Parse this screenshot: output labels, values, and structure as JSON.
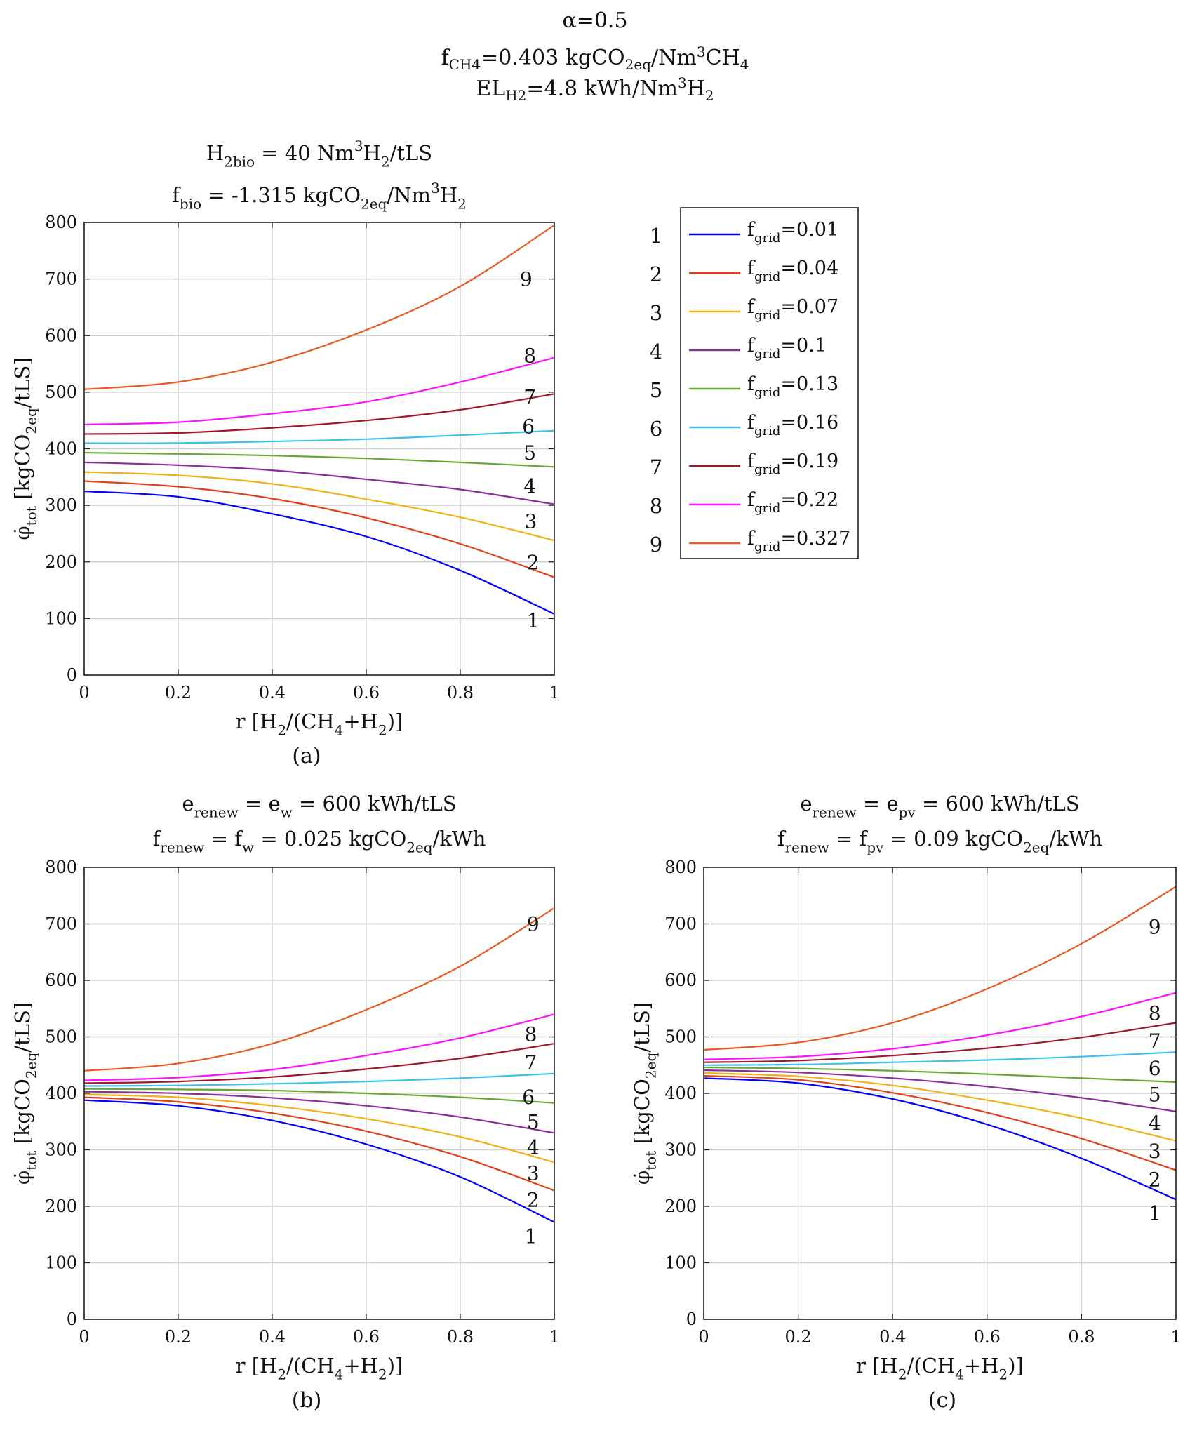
{
  "header": {
    "alpha": "α=0.5",
    "f_ch4": {
      "main": "f",
      "sub": "CH4",
      "rest": "=0.403 kgCO",
      "sub2": "2eq",
      "rest2": "/Nm",
      "sup": "3",
      "rest3": "CH",
      "sub3": "4"
    },
    "el_h2": {
      "main": "EL",
      "sub": "H2",
      "rest": "=4.8 kWh/Nm",
      "sup": "3",
      "rest2": "H",
      "sub2": "2"
    }
  },
  "legend": {
    "numbers": [
      "1",
      "2",
      "3",
      "4",
      "5",
      "6",
      "7",
      "8",
      "9"
    ],
    "prefix": "f",
    "sub": "grid",
    "values": [
      "=0.01",
      "=0.04",
      "=0.07",
      "=0.1",
      "=0.13",
      "=0.16",
      "=0.19",
      "=0.22",
      "=0.327"
    ]
  },
  "colors": {
    "series": [
      "#0000ff",
      "#e0401a",
      "#f2b019",
      "#8a2f9a",
      "#66a832",
      "#3ec0f0",
      "#a0182f",
      "#ff10ff",
      "#e85a22"
    ]
  },
  "axis_common": {
    "xticks": [
      "0",
      "0.2",
      "0.4",
      "0.6",
      "0.8",
      "1"
    ],
    "yticks": [
      "0",
      "100",
      "200",
      "300",
      "400",
      "500",
      "600",
      "700",
      "800"
    ],
    "xlabel": "r [H2/(CH4+H2)]",
    "ylabel": "φ̇tot [kgCO2eq/tLS]"
  },
  "chart_data": [
    {
      "type": "line",
      "panel": "(a)",
      "title": [
        "H2bio = 40 Nm3H2/tLS",
        "fbio = -1.315 kgCO2eq/Nm3H2"
      ],
      "xlabel": "r [H2/(CH4+H2)]",
      "ylabel": "φ̇tot [kgCO2eq/tLS]",
      "xlim": [
        0,
        1
      ],
      "ylim": [
        0,
        800
      ],
      "x": [
        0,
        0.2,
        0.4,
        0.6,
        0.8,
        1
      ],
      "series": [
        {
          "name": "1",
          "values": [
            325,
            315,
            285,
            245,
            185,
            108
          ]
        },
        {
          "name": "2",
          "values": [
            343,
            333,
            312,
            278,
            232,
            173
          ]
        },
        {
          "name": "3",
          "values": [
            359,
            353,
            338,
            311,
            279,
            238
          ]
        },
        {
          "name": "4",
          "values": [
            376,
            371,
            362,
            346,
            328,
            302
          ]
        },
        {
          "name": "5",
          "values": [
            393,
            391,
            388,
            383,
            376,
            368
          ]
        },
        {
          "name": "6",
          "values": [
            410,
            410,
            413,
            417,
            424,
            432
          ]
        },
        {
          "name": "7",
          "values": [
            426,
            428,
            437,
            450,
            469,
            497
          ]
        },
        {
          "name": "8",
          "values": [
            443,
            447,
            462,
            483,
            518,
            561
          ]
        },
        {
          "name": "9",
          "values": [
            505,
            518,
            553,
            610,
            687,
            795
          ]
        }
      ]
    },
    {
      "type": "line",
      "panel": "(b)",
      "title": [
        "erenew = ew = 600 kWh/tLS",
        "frenew = fw = 0.025 kgCO2eq/kWh"
      ],
      "xlabel": "r [H2/(CH4+H2)]",
      "ylabel": "φ̇tot [kgCO2eq/tLS]",
      "xlim": [
        0,
        1
      ],
      "ylim": [
        0,
        800
      ],
      "x": [
        0,
        0.2,
        0.4,
        0.6,
        0.8,
        1
      ],
      "series": [
        {
          "name": "1",
          "values": [
            388,
            378,
            352,
            310,
            252,
            172
          ]
        },
        {
          "name": "2",
          "values": [
            393,
            385,
            365,
            333,
            288,
            228
          ]
        },
        {
          "name": "3",
          "values": [
            398,
            393,
            378,
            355,
            323,
            278
          ]
        },
        {
          "name": "4",
          "values": [
            403,
            400,
            392,
            378,
            358,
            330
          ]
        },
        {
          "name": "5",
          "values": [
            408,
            407,
            405,
            400,
            393,
            383
          ]
        },
        {
          "name": "6",
          "values": [
            413,
            414,
            417,
            421,
            427,
            435
          ]
        },
        {
          "name": "7",
          "values": [
            418,
            421,
            429,
            443,
            462,
            488
          ]
        },
        {
          "name": "8",
          "values": [
            423,
            428,
            442,
            467,
            498,
            540
          ]
        },
        {
          "name": "9",
          "values": [
            440,
            453,
            488,
            548,
            625,
            728
          ]
        }
      ]
    },
    {
      "type": "line",
      "panel": "(c)",
      "title": [
        "erenew = epv = 600 kWh/tLS",
        "frenew = fpv = 0.09 kgCO2eq/kWh"
      ],
      "xlabel": "r [H2/(CH4+H2)]",
      "ylabel": "φ̇tot [kgCO2eq/tLS]",
      "xlim": [
        0,
        1
      ],
      "ylim": [
        0,
        800
      ],
      "x": [
        0,
        0.2,
        0.4,
        0.6,
        0.8,
        1
      ],
      "series": [
        {
          "name": "1",
          "values": [
            427,
            418,
            390,
            345,
            285,
            212
          ]
        },
        {
          "name": "2",
          "values": [
            431,
            424,
            401,
            366,
            320,
            264
          ]
        },
        {
          "name": "3",
          "values": [
            436,
            430,
            414,
            388,
            356,
            316
          ]
        },
        {
          "name": "4",
          "values": [
            441,
            437,
            427,
            412,
            392,
            368
          ]
        },
        {
          "name": "5",
          "values": [
            446,
            444,
            440,
            434,
            427,
            420
          ]
        },
        {
          "name": "6",
          "values": [
            450,
            451,
            455,
            459,
            465,
            473
          ]
        },
        {
          "name": "7",
          "values": [
            455,
            458,
            467,
            480,
            499,
            525
          ]
        },
        {
          "name": "8",
          "values": [
            460,
            465,
            479,
            503,
            536,
            578
          ]
        },
        {
          "name": "9",
          "values": [
            477,
            490,
            525,
            585,
            665,
            766
          ]
        }
      ]
    }
  ]
}
